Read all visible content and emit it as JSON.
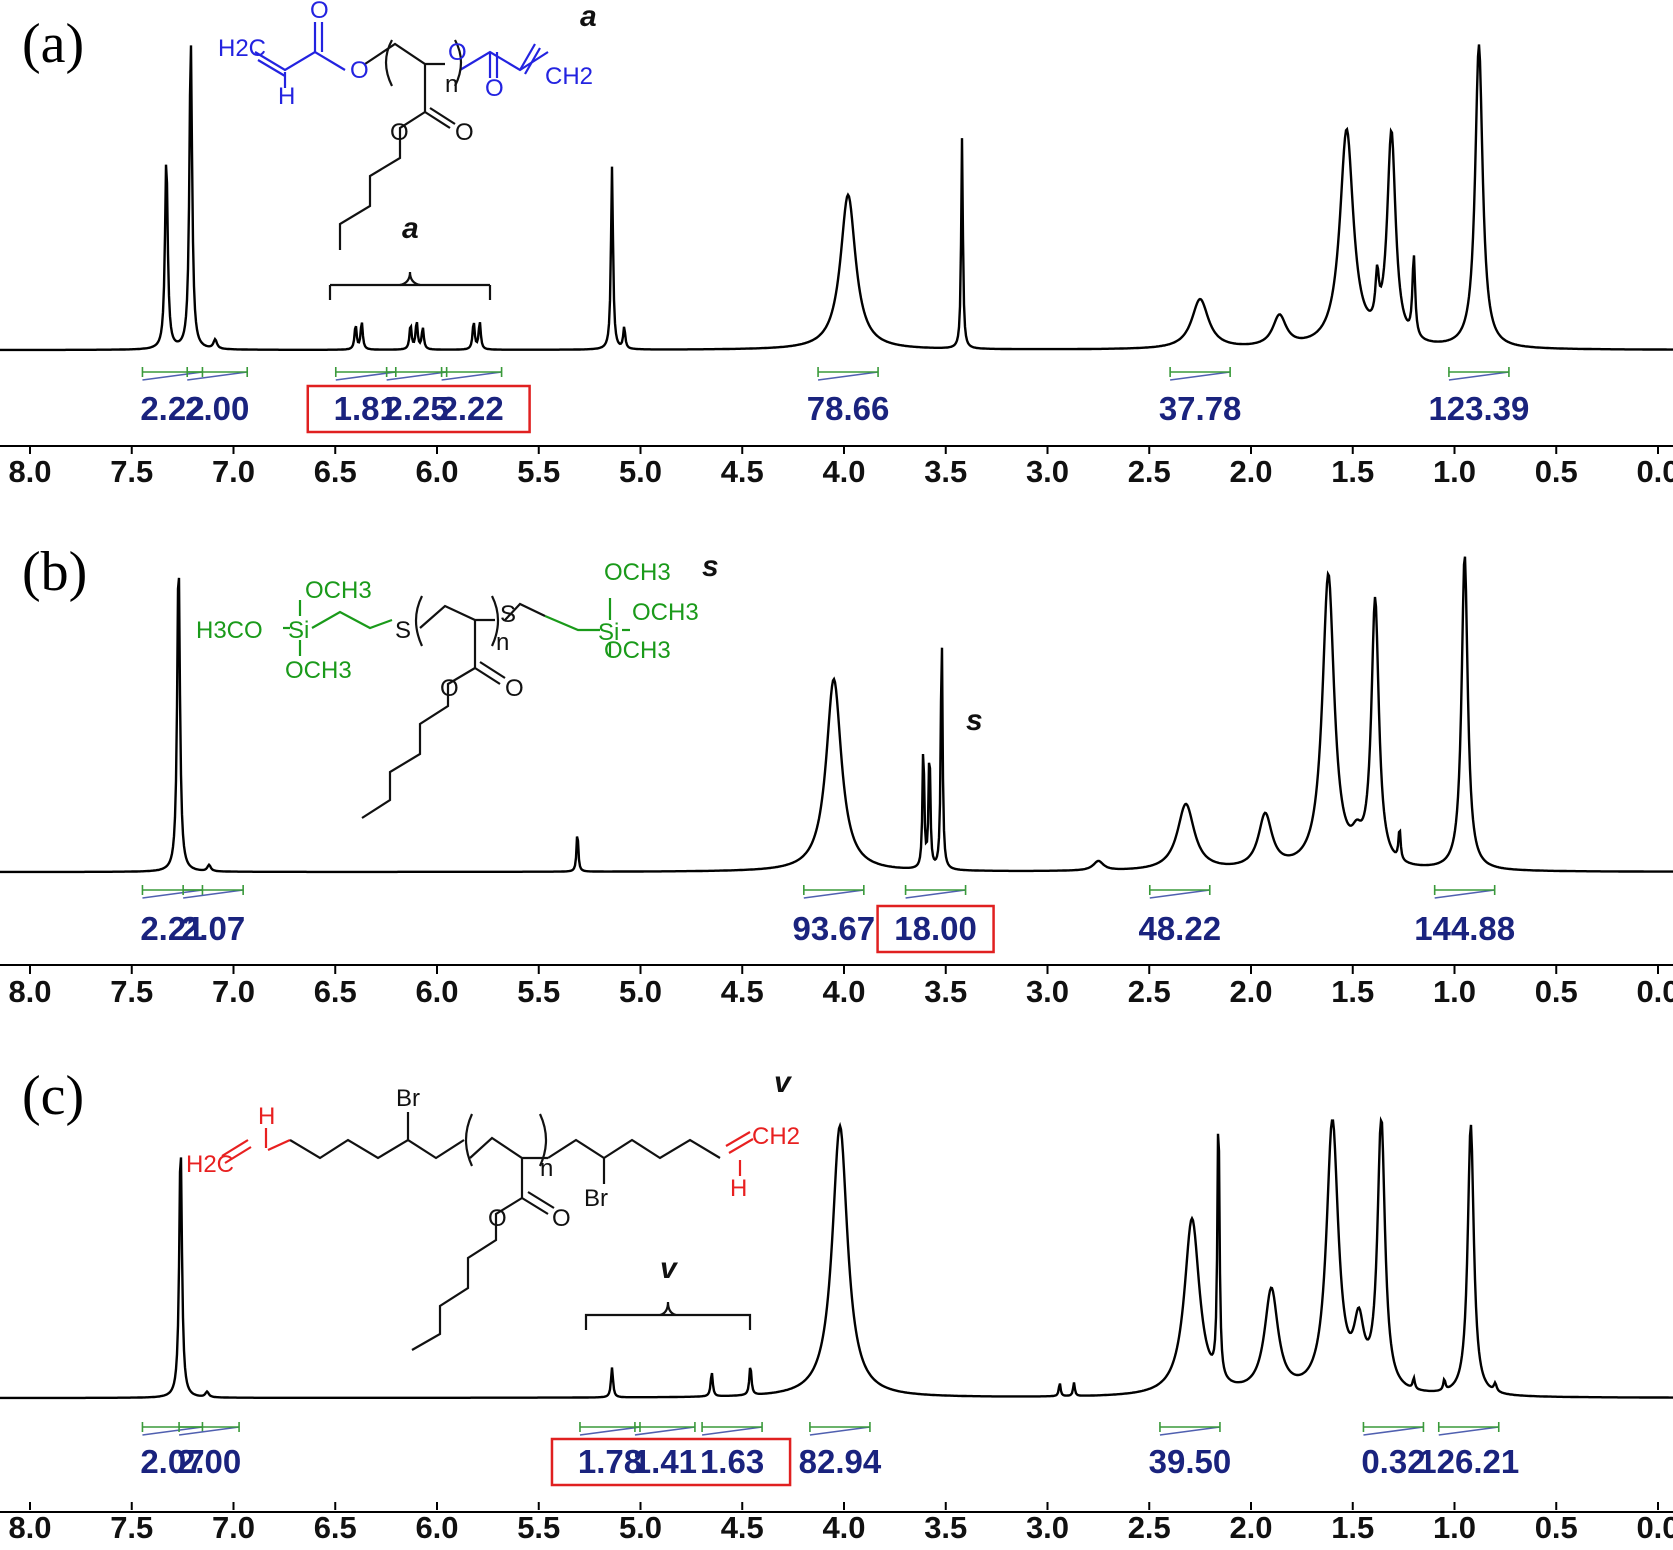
{
  "panels": [
    {
      "label": "(a)",
      "axis_ticks": [
        "8.0",
        "7.5",
        "7.0",
        "6.5",
        "6.0",
        "5.5",
        "5.0",
        "4.5",
        "4.0",
        "3.5",
        "3.0",
        "2.5",
        "2.0",
        "1.5",
        "1.0",
        "0.5",
        "0.0"
      ],
      "peak_tags": [
        "a",
        "a"
      ],
      "structure_labels": [
        "H2C",
        "H",
        "O",
        "O",
        "n",
        "O",
        "O",
        "CH2",
        "O",
        "O"
      ],
      "color": "#2323e0",
      "integrals": [
        {
          "value": "2.22",
          "ppm": 7.3,
          "boxed": false
        },
        {
          "value": "2.00",
          "ppm": 7.08,
          "boxed": false
        },
        {
          "value": "1.81",
          "ppm": 6.35,
          "boxed": true
        },
        {
          "value": "2.25",
          "ppm": 6.1,
          "boxed": true
        },
        {
          "value": "2.22",
          "ppm": 5.83,
          "boxed": true
        },
        {
          "value": "78.66",
          "ppm": 3.98,
          "boxed": false
        },
        {
          "value": "37.78",
          "ppm": 2.25,
          "boxed": false
        },
        {
          "value": "123.39",
          "ppm": 0.88,
          "boxed": false
        }
      ]
    },
    {
      "label": "(b)",
      "axis_ticks": [
        "8.0",
        "7.5",
        "7.0",
        "6.5",
        "6.0",
        "5.5",
        "5.0",
        "4.5",
        "4.0",
        "3.5",
        "3.0",
        "2.5",
        "2.0",
        "1.5",
        "1.0",
        "0.5",
        "0.0"
      ],
      "peak_tags": [
        "s",
        "s"
      ],
      "structure_labels": [
        "OCH3",
        "H3CO",
        "Si",
        "OCH3",
        "S",
        "n",
        "S",
        "OCH3",
        "Si",
        "OCH3",
        "OCH3",
        "O",
        "O"
      ],
      "color": "#1a9a1a",
      "integrals": [
        {
          "value": "2.21",
          "ppm": 7.3,
          "boxed": false
        },
        {
          "value": "2.07",
          "ppm": 7.1,
          "boxed": false
        },
        {
          "value": "93.67",
          "ppm": 4.05,
          "boxed": false
        },
        {
          "value": "18.00",
          "ppm": 3.55,
          "boxed": true
        },
        {
          "value": "48.22",
          "ppm": 2.35,
          "boxed": false
        },
        {
          "value": "144.88",
          "ppm": 0.95,
          "boxed": false
        }
      ]
    },
    {
      "label": "(c)",
      "axis_ticks": [
        "8.0",
        "7.5",
        "7.0",
        "6.5",
        "6.0",
        "5.5",
        "5.0",
        "4.5",
        "4.0",
        "3.5",
        "3.0",
        "2.5",
        "2.0",
        "1.5",
        "1.0",
        "0.5",
        "0.0"
      ],
      "peak_tags": [
        "v",
        "v"
      ],
      "structure_labels": [
        "H",
        "H2C",
        "Br",
        "n",
        "Br",
        "CH2",
        "H",
        "O",
        "O"
      ],
      "color": "#e82020",
      "integrals": [
        {
          "value": "2.07",
          "ppm": 7.3,
          "boxed": false
        },
        {
          "value": "2.00",
          "ppm": 7.12,
          "boxed": false
        },
        {
          "value": "1.78",
          "ppm": 5.15,
          "boxed": true
        },
        {
          "value": "1.41",
          "ppm": 4.88,
          "boxed": true
        },
        {
          "value": "1.63",
          "ppm": 4.55,
          "boxed": true
        },
        {
          "value": "82.94",
          "ppm": 4.02,
          "boxed": false
        },
        {
          "value": "39.50",
          "ppm": 2.3,
          "boxed": false
        },
        {
          "value": "0.32",
          "ppm": 1.3,
          "boxed": false
        },
        {
          "value": "126.21",
          "ppm": 0.93,
          "boxed": false
        }
      ]
    }
  ],
  "chart_data": [
    {
      "type": "line",
      "xlim": [
        8.0,
        0.0
      ],
      "x_ticks": [
        8.0,
        7.5,
        7.0,
        6.5,
        6.0,
        5.5,
        5.0,
        4.5,
        4.0,
        3.5,
        3.0,
        2.5,
        2.0,
        1.5,
        1.0,
        0.5,
        0.0
      ],
      "peaks": [
        {
          "ppm": 7.33,
          "height": 0.62,
          "width": 0.008
        },
        {
          "ppm": 7.21,
          "height": 1.0,
          "width": 0.008
        },
        {
          "ppm": 7.09,
          "height": 0.03,
          "width": 0.01
        },
        {
          "ppm": 6.4,
          "height": 0.08,
          "width": 0.006
        },
        {
          "ppm": 6.37,
          "height": 0.09,
          "width": 0.006
        },
        {
          "ppm": 6.13,
          "height": 0.08,
          "width": 0.006
        },
        {
          "ppm": 6.1,
          "height": 0.09,
          "width": 0.006
        },
        {
          "ppm": 6.07,
          "height": 0.07,
          "width": 0.006
        },
        {
          "ppm": 5.82,
          "height": 0.09,
          "width": 0.006
        },
        {
          "ppm": 5.79,
          "height": 0.09,
          "width": 0.006
        },
        {
          "ppm": 5.14,
          "height": 0.59,
          "width": 0.006
        },
        {
          "ppm": 5.08,
          "height": 0.07,
          "width": 0.006
        },
        {
          "ppm": 3.98,
          "height": 0.5,
          "width": 0.045
        },
        {
          "ppm": 3.42,
          "height": 0.68,
          "width": 0.005
        },
        {
          "ppm": 2.25,
          "height": 0.16,
          "width": 0.05
        },
        {
          "ppm": 1.86,
          "height": 0.1,
          "width": 0.04
        },
        {
          "ppm": 1.53,
          "height": 0.7,
          "width": 0.04
        },
        {
          "ppm": 1.38,
          "height": 0.15,
          "width": 0.01
        },
        {
          "ppm": 1.31,
          "height": 0.68,
          "width": 0.025
        },
        {
          "ppm": 1.2,
          "height": 0.26,
          "width": 0.008
        },
        {
          "ppm": 0.88,
          "height": 0.98,
          "width": 0.022
        }
      ]
    },
    {
      "type": "line",
      "xlim": [
        8.0,
        0.0
      ],
      "x_ticks": [
        8.0,
        7.5,
        7.0,
        6.5,
        6.0,
        5.5,
        5.0,
        4.5,
        4.0,
        3.5,
        3.0,
        2.5,
        2.0,
        1.5,
        1.0,
        0.5,
        0.0
      ],
      "peaks": [
        {
          "ppm": 7.27,
          "height": 1.0,
          "width": 0.008
        },
        {
          "ppm": 7.12,
          "height": 0.02,
          "width": 0.01
        },
        {
          "ppm": 5.31,
          "height": 0.13,
          "width": 0.005
        },
        {
          "ppm": 4.05,
          "height": 0.61,
          "width": 0.045
        },
        {
          "ppm": 3.61,
          "height": 0.4,
          "width": 0.005
        },
        {
          "ppm": 3.58,
          "height": 0.39,
          "width": 0.005
        },
        {
          "ppm": 3.52,
          "height": 0.77,
          "width": 0.005
        },
        {
          "ppm": 2.75,
          "height": 0.03,
          "width": 0.03
        },
        {
          "ppm": 2.32,
          "height": 0.21,
          "width": 0.05
        },
        {
          "ppm": 1.93,
          "height": 0.17,
          "width": 0.04
        },
        {
          "ppm": 1.62,
          "height": 0.93,
          "width": 0.035
        },
        {
          "ppm": 1.48,
          "height": 0.06,
          "width": 0.03
        },
        {
          "ppm": 1.39,
          "height": 0.84,
          "width": 0.022
        },
        {
          "ppm": 1.27,
          "height": 0.1,
          "width": 0.006
        },
        {
          "ppm": 0.95,
          "height": 1.0,
          "width": 0.018
        }
      ]
    },
    {
      "type": "line",
      "xlim": [
        8.0,
        0.0
      ],
      "x_ticks": [
        8.0,
        7.5,
        7.0,
        6.5,
        6.0,
        5.5,
        5.0,
        4.5,
        4.0,
        3.5,
        3.0,
        2.5,
        2.0,
        1.5,
        1.0,
        0.5,
        0.0
      ],
      "peaks": [
        {
          "ppm": 7.26,
          "height": 0.94,
          "width": 0.008
        },
        {
          "ppm": 7.13,
          "height": 0.02,
          "width": 0.01
        },
        {
          "ppm": 5.14,
          "height": 0.11,
          "width": 0.006
        },
        {
          "ppm": 4.65,
          "height": 0.09,
          "width": 0.006
        },
        {
          "ppm": 4.46,
          "height": 0.11,
          "width": 0.006
        },
        {
          "ppm": 4.02,
          "height": 1.0,
          "width": 0.045
        },
        {
          "ppm": 2.94,
          "height": 0.05,
          "width": 0.005
        },
        {
          "ppm": 2.87,
          "height": 0.05,
          "width": 0.005
        },
        {
          "ppm": 2.29,
          "height": 0.65,
          "width": 0.045
        },
        {
          "ppm": 2.16,
          "height": 1.0,
          "width": 0.006
        },
        {
          "ppm": 1.9,
          "height": 0.38,
          "width": 0.04
        },
        {
          "ppm": 1.6,
          "height": 1.0,
          "width": 0.035
        },
        {
          "ppm": 1.47,
          "height": 0.22,
          "width": 0.03
        },
        {
          "ppm": 1.36,
          "height": 1.0,
          "width": 0.022
        },
        {
          "ppm": 1.2,
          "height": 0.04,
          "width": 0.006
        },
        {
          "ppm": 1.05,
          "height": 0.04,
          "width": 0.006
        },
        {
          "ppm": 0.92,
          "height": 1.0,
          "width": 0.018
        },
        {
          "ppm": 0.8,
          "height": 0.03,
          "width": 0.008
        }
      ]
    }
  ]
}
